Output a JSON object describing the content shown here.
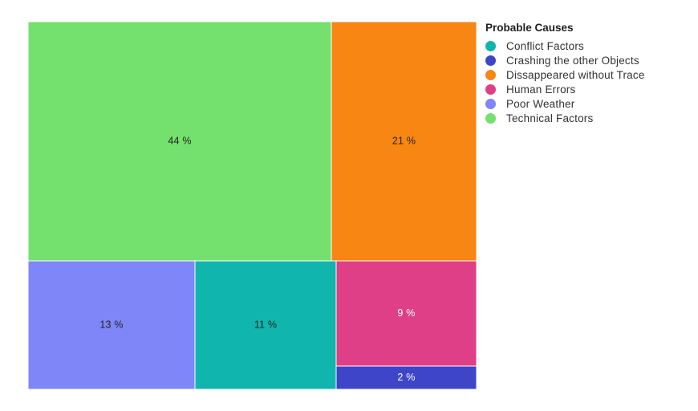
{
  "chart_data": {
    "type": "treemap",
    "title": "",
    "legend": {
      "title": "Probable Causes",
      "placement": "right"
    },
    "items": [
      {
        "name": "Technical Factors",
        "value": 44,
        "label": "44 %",
        "color": "#74e06e",
        "label_color": "#222222"
      },
      {
        "name": "Dissappeared without Trace",
        "value": 21,
        "label": "21 %",
        "color": "#f78613",
        "label_color": "#222222"
      },
      {
        "name": "Poor Weather",
        "value": 13,
        "label": "13 %",
        "color": "#7f86f7",
        "label_color": "#222222"
      },
      {
        "name": "Conflict Factors",
        "value": 11,
        "label": "11 %",
        "color": "#10b6ae",
        "label_color": "#222222"
      },
      {
        "name": "Human Errors",
        "value": 9,
        "label": "9 %",
        "color": "#de3f86",
        "label_color": "#ffffff"
      },
      {
        "name": "Crashing the other Objects",
        "value": 2,
        "label": "2 %",
        "color": "#3f45c8",
        "label_color": "#ffffff"
      }
    ],
    "legend_order": [
      "Conflict Factors",
      "Crashing the other Objects",
      "Dissappeared without Trace",
      "Human Errors",
      "Poor Weather",
      "Technical Factors"
    ]
  }
}
